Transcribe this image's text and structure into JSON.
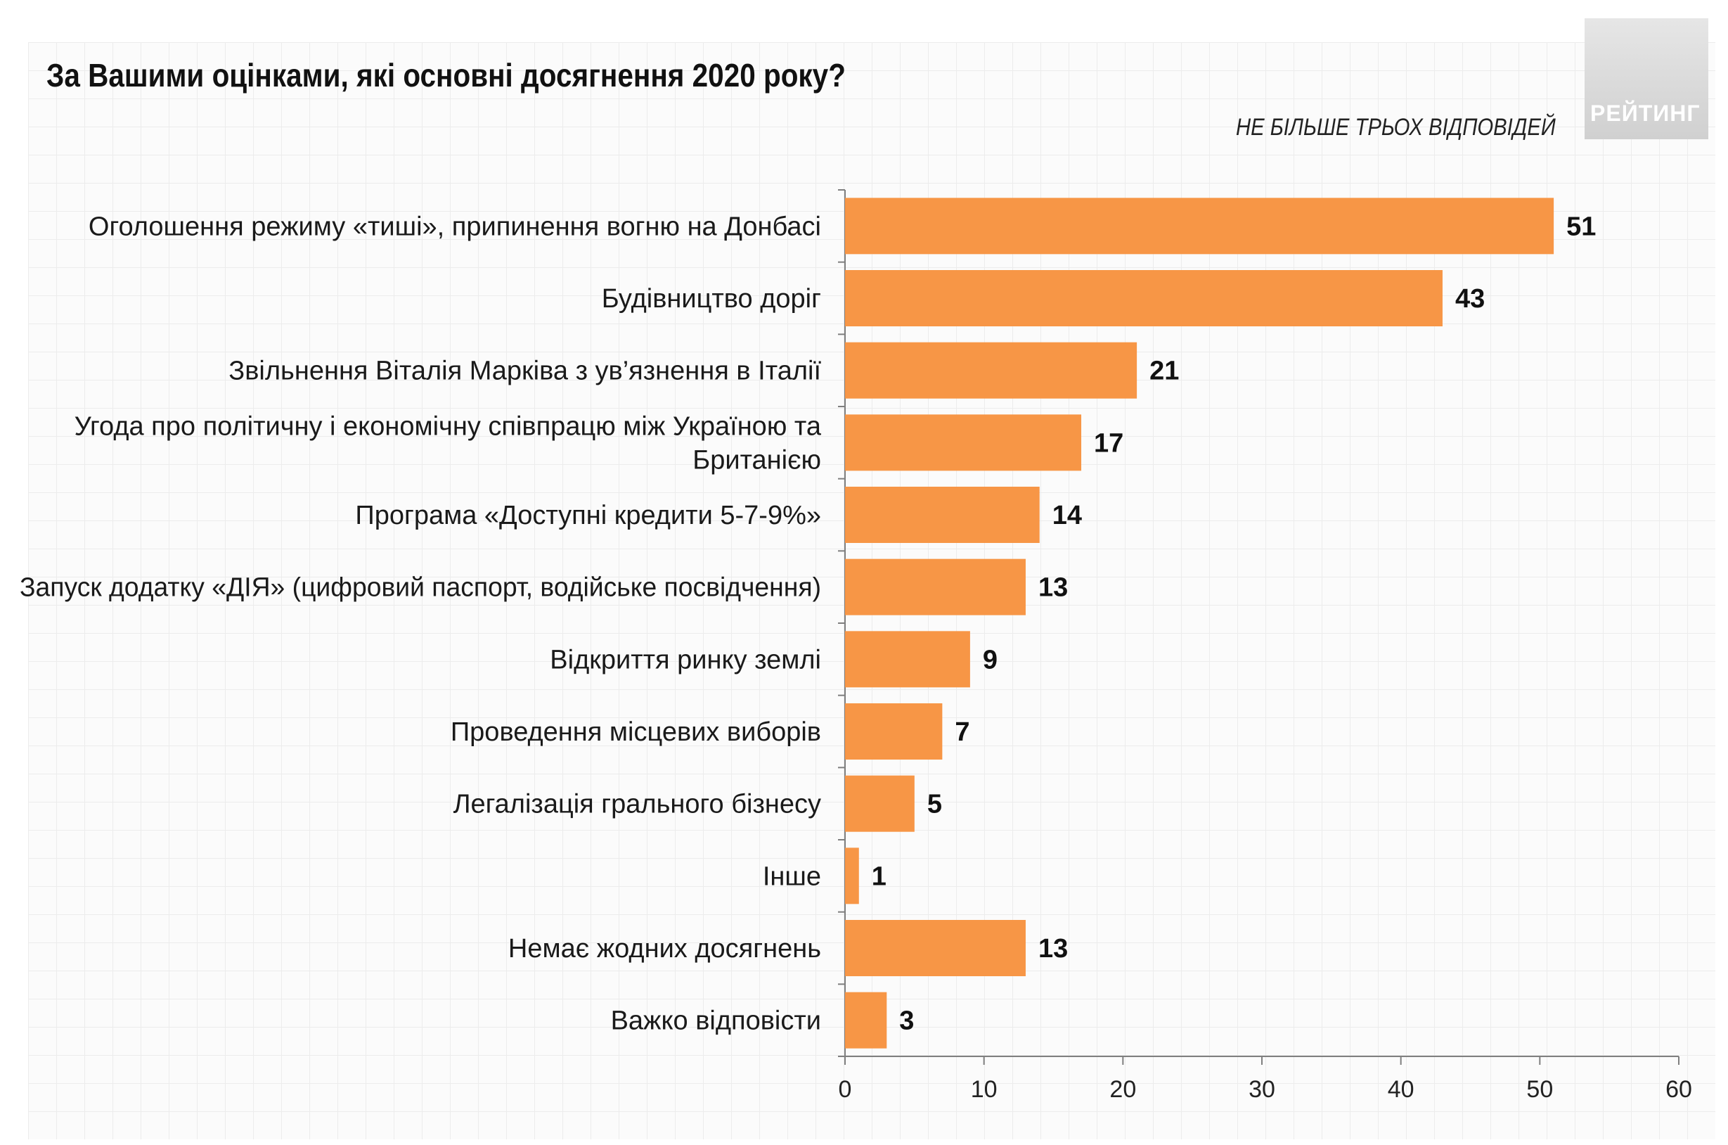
{
  "title": "За Вашими оцінками, які основні досягнення 2020 року?",
  "subtitle": "НЕ БІЛЬШЕ ТРЬОХ ВІДПОВІДЕЙ",
  "logo_text": "РЕЙТИНГ",
  "colors": {
    "bar": "#F79646",
    "axis": "#7f7f7f",
    "grid": "#ececec"
  },
  "chart_data": {
    "type": "bar",
    "orientation": "horizontal",
    "title": "За Вашими оцінками, які основні досягнення 2020 року?",
    "xlim": [
      0,
      60
    ],
    "xticks": [
      0,
      10,
      20,
      30,
      40,
      50,
      60
    ],
    "grid": true,
    "categories": [
      [
        "Оголошення режиму «тиші», припинення вогню на Донбасі"
      ],
      [
        "Будівництво доріг"
      ],
      [
        "Звільнення Віталія Марківа з ув’язнення в Італії"
      ],
      [
        "Угода про політичну і економічну співпрацю між Україною та",
        "Британією"
      ],
      [
        "Програма «Доступні кредити 5-7-9%»"
      ],
      [
        "Запуск  додатку «ДІЯ» (цифровий паспорт, водійське посвідчення)"
      ],
      [
        "Відкриття ринку землі"
      ],
      [
        "Проведення місцевих виборів"
      ],
      [
        "Легалізація грального бізнесу"
      ],
      [
        "Інше"
      ],
      [
        "Немає жодних досягнень"
      ],
      [
        "Важко відповісти"
      ]
    ],
    "values": [
      51,
      43,
      21,
      17,
      14,
      13,
      9,
      7,
      5,
      1,
      13,
      3
    ]
  }
}
